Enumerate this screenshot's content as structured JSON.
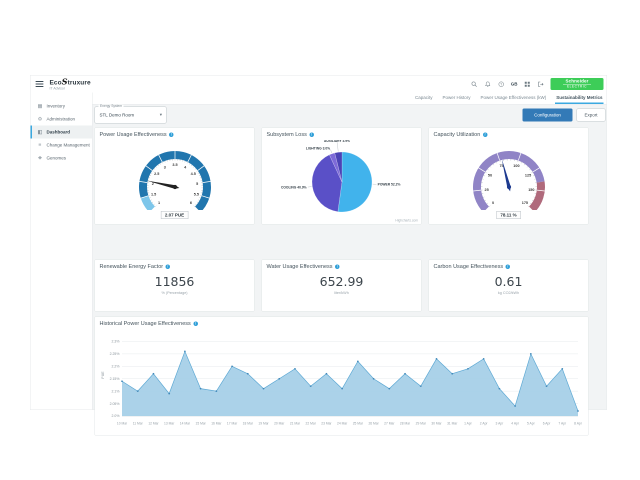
{
  "header": {
    "logo": {
      "prefix": "Eco",
      "script": "S",
      "suffix": "truxure",
      "subtitle": "IT Advisor"
    },
    "language": "GB",
    "vendor": {
      "line1": "Schneider",
      "line2": "ELECTRIC"
    }
  },
  "tabs": {
    "items": [
      {
        "label": "Capacity",
        "active": false
      },
      {
        "label": "Power History",
        "active": false
      },
      {
        "label": "Power Usage Effectiveness (kW)",
        "active": false
      },
      {
        "label": "Sustainability Metrics",
        "active": true
      }
    ]
  },
  "sidebar": {
    "items": [
      {
        "label": "Inventory",
        "icon": "▦",
        "active": false
      },
      {
        "label": "Administration",
        "icon": "⚙",
        "active": false
      },
      {
        "label": "Dashboard",
        "icon": "◧",
        "active": true
      },
      {
        "label": "Change Management",
        "icon": "≡",
        "active": false
      },
      {
        "label": "Genomes",
        "icon": "❖",
        "active": false
      }
    ]
  },
  "filters": {
    "energy_system": {
      "label": "Energy System",
      "value": "STL Demo Room"
    }
  },
  "actions": {
    "configuration": "Configuration",
    "export": "Export"
  },
  "cards": {
    "pue": {
      "title": "Power Usage Effectiveness",
      "value_label": "2.07 PUE"
    },
    "subsystem": {
      "title": "Subsystem Loss",
      "credit": "Highcharts.com"
    },
    "capacity": {
      "title": "Capacity Utilization",
      "value_label": "78.11 %"
    },
    "metrics": [
      {
        "title": "Renewable Energy Factor",
        "value": "11856",
        "unit": "% (Percentage)"
      },
      {
        "title": "Water Usage Effectiveness",
        "value": "652.99",
        "unit": "liter/kWh"
      },
      {
        "title": "Carbon Usage Effectiveness",
        "value": "0.61",
        "unit": "kg CO2/kWh"
      }
    ],
    "historical": {
      "title": "Historical Power Usage Effectiveness"
    }
  },
  "colors": {
    "accent_blue": "#3ba9e0",
    "schneider_green": "#3dcd58",
    "primary_button_blue": "#337ab7"
  },
  "chart_data": [
    {
      "id": "pue_gauge",
      "type": "gauge",
      "title": "Power Usage Effectiveness",
      "min": 1,
      "max": 6,
      "tick_step": 0.5,
      "value": 2.07,
      "value_label": "2.07 PUE",
      "needle_color": "#222222",
      "segments": [
        {
          "from": 1,
          "to": 1.5,
          "color": "#7dc6ea"
        },
        {
          "from": 1.5,
          "to": 6,
          "color": "#2176ae"
        }
      ]
    },
    {
      "id": "subsystem_pie",
      "type": "pie",
      "title": "Subsystem Loss",
      "slices": [
        {
          "name": "POWER",
          "value": 52.2,
          "color": "#41b3ec"
        },
        {
          "name": "COOLING",
          "value": 40.9,
          "color": "#5a50c7"
        },
        {
          "name": "LIGHTING",
          "value": 3.0,
          "color": "#7d6ad8"
        },
        {
          "name": "AUXILIARY",
          "value": 3.9,
          "color": "#4b42b5"
        }
      ]
    },
    {
      "id": "capacity_gauge",
      "type": "gauge",
      "title": "Capacity Utilization",
      "min": 0,
      "max": 175,
      "tick_step": 25,
      "value": 78.11,
      "value_label": "78.11 %",
      "needle_color": "#1d3a8f",
      "segments": [
        {
          "from": 0,
          "to": 140,
          "color": "#9084c6"
        },
        {
          "from": 140,
          "to": 175,
          "color": "#b06a7c"
        }
      ]
    },
    {
      "id": "historical_pue",
      "type": "area",
      "title": "Historical Power Usage Effectiveness",
      "ylabel": "PUE",
      "ylim": [
        2.0,
        2.33
      ],
      "yticks": [
        {
          "v": 2.3,
          "label": "2.3%"
        },
        {
          "v": 2.25,
          "label": "2.25%"
        },
        {
          "v": 2.2,
          "label": "2.2%"
        },
        {
          "v": 2.15,
          "label": "2.15%"
        },
        {
          "v": 2.1,
          "label": "2.1%"
        },
        {
          "v": 2.05,
          "label": "2.05%"
        },
        {
          "v": 2.0,
          "label": "2.0%"
        }
      ],
      "categories": [
        "10 Mar",
        "11 Mar",
        "12 Mar",
        "13 Mar",
        "14 Mar",
        "15 Mar",
        "16 Mar",
        "17 Mar",
        "18 Mar",
        "19 Mar",
        "20 Mar",
        "21 Mar",
        "22 Mar",
        "23 Mar",
        "24 Mar",
        "25 Mar",
        "26 Mar",
        "27 Mar",
        "28 Mar",
        "29 Mar",
        "30 Mar",
        "31 Mar",
        "1 Apr",
        "2 Apr",
        "3 Apr",
        "4 Apr",
        "5 Apr",
        "6 Apr",
        "7 Apr",
        "8 Apr"
      ],
      "values": [
        2.14,
        2.1,
        2.17,
        2.09,
        2.26,
        2.11,
        2.1,
        2.2,
        2.17,
        2.11,
        2.15,
        2.19,
        2.12,
        2.17,
        2.11,
        2.22,
        2.15,
        2.11,
        2.17,
        2.12,
        2.23,
        2.17,
        2.19,
        2.23,
        2.11,
        2.04,
        2.25,
        2.12,
        2.19,
        2.02
      ],
      "line_color": "#5ea9d4",
      "area_color": "#a7d0e8",
      "marker_color": "#3f87b8",
      "grid_on": true,
      "legend": "none"
    }
  ]
}
